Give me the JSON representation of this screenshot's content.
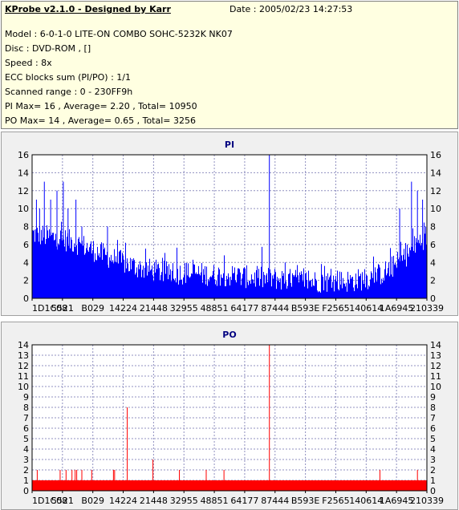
{
  "header": {
    "title": "KProbe v2.1.0 - Designed by Karr",
    "date": "Date : 2005/02/23 14:27:53",
    "lines": [
      "Model : 6-0-1-0 LITE-ON COMBO SOHC-5232K NK07",
      "Disc : DVD-ROM ,  []",
      "Speed : 8x",
      "ECC blocks sum (PI/PO) : 1/1",
      "Scanned range : 0 - 230FF9h",
      "PI Max= 16 , Average= 2.20 , Total= 10950",
      "PO Max= 14 , Average= 0.65 , Total= 3256"
    ]
  },
  "chart_data": [
    {
      "type": "bar",
      "title": "PI",
      "color": "#0000ff",
      "ylim": [
        0,
        16
      ],
      "yticks": [
        0,
        2,
        4,
        6,
        8,
        10,
        12,
        14,
        16
      ],
      "xtick_labels": [
        "1D1C08",
        "5521",
        "B029",
        "14224",
        "21448",
        "32955",
        "48851",
        "64177",
        "87444",
        "B593E",
        "F2565",
        "140614",
        "1A6945",
        "210339"
      ],
      "grid": true,
      "profile": [
        7.2,
        7.0,
        6.8,
        6.6,
        6.3,
        5.9,
        5.4,
        4.9,
        4.4,
        4.0,
        3.6,
        3.3,
        3.1,
        2.9,
        2.8,
        2.8,
        2.8,
        2.7,
        2.6,
        2.6,
        2.5,
        2.4,
        2.3,
        2.2,
        2.2,
        2.1,
        2.0,
        2.0,
        1.9,
        1.9,
        1.9,
        1.9,
        2.0,
        2.2,
        2.5,
        3.0,
        3.8,
        4.8,
        6.0,
        7.0
      ],
      "peaks": [
        {
          "x": 0.01,
          "y": 11
        },
        {
          "x": 0.018,
          "y": 10
        },
        {
          "x": 0.03,
          "y": 13
        },
        {
          "x": 0.046,
          "y": 11
        },
        {
          "x": 0.062,
          "y": 12
        },
        {
          "x": 0.078,
          "y": 13
        },
        {
          "x": 0.09,
          "y": 10
        },
        {
          "x": 0.11,
          "y": 11
        },
        {
          "x": 0.125,
          "y": 8
        },
        {
          "x": 0.19,
          "y": 8
        },
        {
          "x": 0.6,
          "y": 16
        },
        {
          "x": 0.64,
          "y": 4
        },
        {
          "x": 0.93,
          "y": 10
        },
        {
          "x": 0.96,
          "y": 13
        },
        {
          "x": 0.975,
          "y": 12
        },
        {
          "x": 0.988,
          "y": 11
        }
      ]
    },
    {
      "type": "bar",
      "title": "PO",
      "color": "#ff0000",
      "ylim": [
        0,
        14
      ],
      "yticks": [
        0,
        1,
        2,
        3,
        4,
        5,
        6,
        7,
        8,
        9,
        10,
        11,
        12,
        13,
        14
      ],
      "xtick_labels": [
        "1D1C08",
        "5521",
        "B029",
        "14224",
        "21448",
        "32955",
        "48851",
        "64177",
        "87444",
        "B593E",
        "F2565",
        "140614",
        "1A6945",
        "210339"
      ],
      "grid": true,
      "baseline": 1,
      "spikes": [
        {
          "x": 0.012,
          "y": 2
        },
        {
          "x": 0.07,
          "y": 2
        },
        {
          "x": 0.085,
          "y": 2
        },
        {
          "x": 0.1,
          "y": 2
        },
        {
          "x": 0.108,
          "y": 2
        },
        {
          "x": 0.112,
          "y": 2
        },
        {
          "x": 0.125,
          "y": 2
        },
        {
          "x": 0.15,
          "y": 2
        },
        {
          "x": 0.205,
          "y": 2
        },
        {
          "x": 0.208,
          "y": 2
        },
        {
          "x": 0.24,
          "y": 8
        },
        {
          "x": 0.305,
          "y": 3
        },
        {
          "x": 0.372,
          "y": 2
        },
        {
          "x": 0.44,
          "y": 2
        },
        {
          "x": 0.485,
          "y": 2
        },
        {
          "x": 0.6,
          "y": 14
        },
        {
          "x": 0.88,
          "y": 2
        },
        {
          "x": 0.975,
          "y": 2
        }
      ]
    }
  ]
}
